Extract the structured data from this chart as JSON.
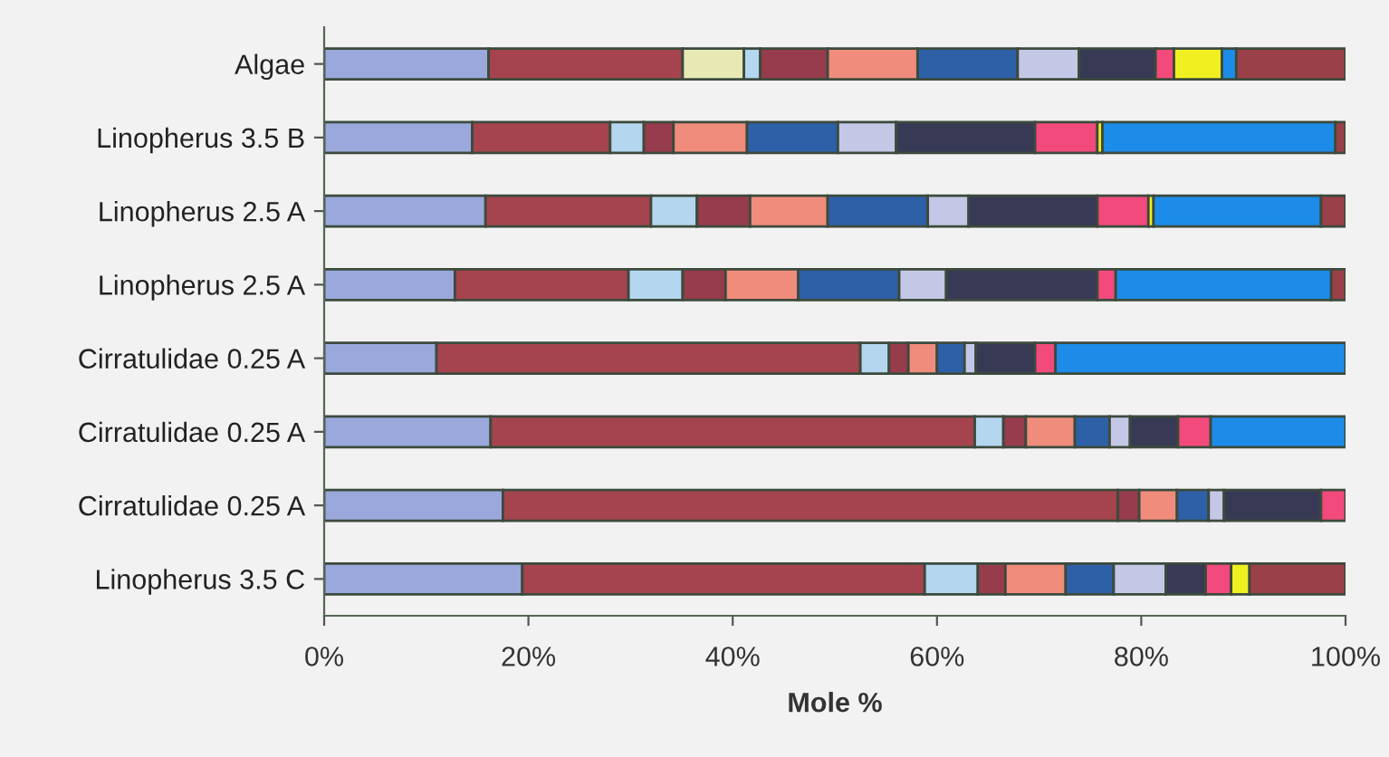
{
  "chart_data": {
    "type": "bar",
    "orientation": "horizontal",
    "stacked": true,
    "xlabel": "Mole %",
    "categories": [
      "Algae",
      "Linopherus 3.5 B",
      "Linopherus 2.5 A",
      "Linopherus 2.5 A",
      "Cirratulidae 0.25 A",
      "Cirratulidae 0.25 A",
      "Cirratulidae 0.25 A",
      "Linopherus 3.5 C"
    ],
    "xlim": [
      0,
      100
    ],
    "xticks": [
      {
        "value": 0,
        "label": "0%"
      },
      {
        "value": 20,
        "label": "20%"
      },
      {
        "value": 40,
        "label": "40%"
      },
      {
        "value": 60,
        "label": "60%"
      },
      {
        "value": 80,
        "label": "80%"
      },
      {
        "value": 100,
        "label": "100%"
      }
    ],
    "grid": false,
    "legend": false,
    "series": [
      {
        "color": "#9aa8dc",
        "values": [
          16.1,
          14.5,
          15.8,
          12.8,
          11.0,
          16.3,
          17.5,
          19.4
        ]
      },
      {
        "color": "#a5444f",
        "values": [
          19.0,
          13.5,
          16.2,
          17.0,
          41.5,
          47.4,
          60.2,
          39.4
        ]
      },
      {
        "color": "#e8e8b4",
        "values": [
          6.0,
          null,
          null,
          null,
          null,
          null,
          null,
          null
        ]
      },
      {
        "color": "#b4d6ee",
        "values": [
          1.6,
          3.3,
          4.5,
          5.3,
          2.8,
          2.8,
          null,
          5.2
        ]
      },
      {
        "color": "#963c4c",
        "values": [
          6.6,
          2.9,
          5.2,
          4.2,
          1.9,
          2.2,
          2.1,
          2.7
        ]
      },
      {
        "color": "#f08c7c",
        "values": [
          8.8,
          7.2,
          7.6,
          7.1,
          2.8,
          4.8,
          3.7,
          5.9
        ]
      },
      {
        "color": "#2e60a8",
        "values": [
          9.8,
          8.9,
          9.8,
          9.9,
          2.7,
          3.4,
          3.1,
          4.7
        ]
      },
      {
        "color": "#c4c8e6",
        "values": [
          6.0,
          5.7,
          4.0,
          4.6,
          1.1,
          2.0,
          1.5,
          5.1
        ]
      },
      {
        "color": "#383a55",
        "values": [
          7.5,
          13.6,
          12.6,
          14.8,
          5.8,
          4.7,
          9.5,
          3.9
        ]
      },
      {
        "color": "#f24a7c",
        "values": [
          1.8,
          6.1,
          5.0,
          1.8,
          2.0,
          3.2,
          2.4,
          2.5
        ]
      },
      {
        "color": "#f0f020",
        "values": [
          4.7,
          0.5,
          0.5,
          null,
          null,
          null,
          null,
          1.8
        ]
      },
      {
        "color": "#1c8ce8",
        "values": [
          1.4,
          22.8,
          16.4,
          21.1,
          28.4,
          13.2,
          null,
          null
        ]
      },
      {
        "color": "#9a4048",
        "values": [
          10.7,
          1.0,
          2.4,
          1.4,
          null,
          null,
          null,
          9.4
        ]
      }
    ]
  }
}
